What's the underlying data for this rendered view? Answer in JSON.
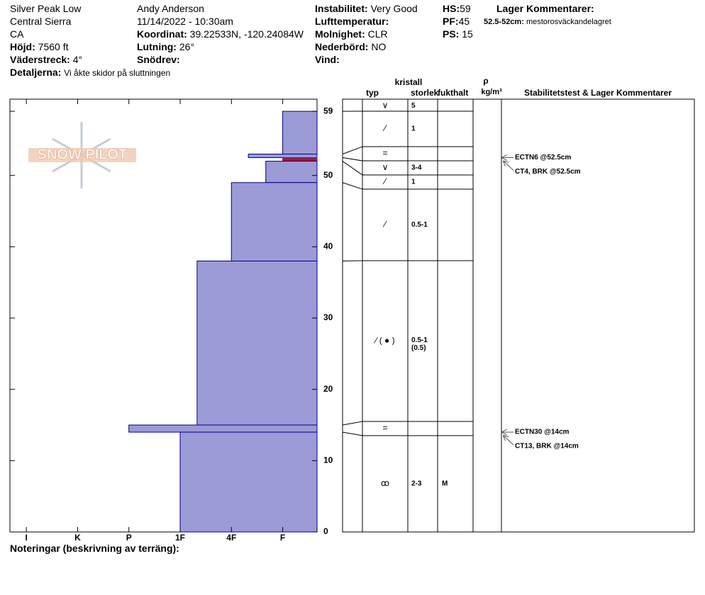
{
  "header": {
    "site": "Silver Peak Low",
    "range": "Central Sierra",
    "state": "CA",
    "elevation": {
      "label": "Höjd:",
      "value": "7560 ft"
    },
    "aspect": {
      "label": "Väderstreck:",
      "value": "4°"
    },
    "details": {
      "label": "Detaljerna:",
      "value": "Vi åkte skidor på sluttningen"
    },
    "observer": "Andy Anderson",
    "datetime": "11/14/2022 - 10:30am",
    "coordinates": {
      "label": "Koordinat:",
      "value": "39.22533N, -120.24084W"
    },
    "slope": {
      "label": "Lutning:",
      "value": "26°"
    },
    "wind_loading": {
      "label": "Snödrev:"
    },
    "stability": {
      "label": "Instabilitet:",
      "value": "Very Good"
    },
    "air_temp": {
      "label": "Lufttemperatur:"
    },
    "sky": {
      "label": "Molnighet:",
      "value": "CLR"
    },
    "precip": {
      "label": "Nederbörd:",
      "value": "NO"
    },
    "wind": {
      "label": "Vind:"
    },
    "hs": {
      "label": "HS:",
      "value": 59
    },
    "pf": {
      "label": "PF:",
      "value": 45
    },
    "ps": {
      "label": "PS:",
      "value": 15
    },
    "layer_comments": {
      "title": "Lager Kommentarer:",
      "items": [
        {
          "label": "52.5-52cm:",
          "value": "mestorosväckandelagret"
        }
      ]
    }
  },
  "chart_data": {
    "type": "snow-profile",
    "logo": "SNOW PILOT",
    "xlim": [
      6.32,
      0.33
    ],
    "xticks": [
      {
        "value": 6,
        "label": "I"
      },
      {
        "value": 5,
        "label": "K"
      },
      {
        "value": 4,
        "label": "P"
      },
      {
        "value": 3,
        "label": "1F"
      },
      {
        "value": 2,
        "label": "4F"
      },
      {
        "value": 1,
        "label": "F"
      }
    ],
    "ylim": [
      0,
      60.7
    ],
    "yticks": [
      0,
      10,
      20,
      30,
      40,
      50,
      59
    ],
    "color": "#9b9bd7",
    "edge_color": "#00008b",
    "layers": [
      {
        "top": 59,
        "bottom": 53,
        "hardness": 1
      },
      {
        "top": 53,
        "bottom": 52.5,
        "hardness": 1.67
      },
      {
        "top": 52.5,
        "bottom": 52,
        "hardness": 1,
        "color": "#9b1b3b"
      },
      {
        "top": 52,
        "bottom": 49,
        "hardness": 1.33
      },
      {
        "top": 49,
        "bottom": 38,
        "hardness": 2
      },
      {
        "top": 38,
        "bottom": 15,
        "hardness": 2.67
      },
      {
        "top": 15,
        "bottom": 14,
        "hardness": 4
      },
      {
        "top": 14,
        "bottom": 0,
        "hardness": 3
      }
    ],
    "table": {
      "headers": {
        "type": "typ",
        "size": [
          "kristall",
          "storlek"
        ],
        "moisture": "fukthalt",
        "density": [
          "ρ",
          "kg/m³"
        ],
        "comments": "Stabilitetstest & Lager Kommentarer"
      },
      "rows": [
        {
          "grain": "∨",
          "size": "5"
        },
        {
          "grain": "⁄",
          "size": "1"
        },
        {
          "grain": "="
        },
        {
          "grain": "∨",
          "size": "3-4"
        },
        {
          "grain": "⁄",
          "size": "1"
        },
        {
          "grain": "⁄",
          "size": "0.5-1"
        },
        {
          "grain": "⁄ ( ● )",
          "size": "0.5-1",
          "size_secondary": "(0.5)"
        },
        {
          "grain": "="
        },
        {
          "grain": "ꝏ",
          "size": "2-3",
          "moisture": "M"
        }
      ]
    },
    "tests": [
      {
        "label": "ECTN6 @52.5cm",
        "depth": 52.5
      },
      {
        "label": "CT4, BRK @52.5cm",
        "depth": 52.5
      },
      {
        "label": "ECTN30 @14cm",
        "depth": 14
      },
      {
        "label": "CT13, BRK @14cm",
        "depth": 14
      }
    ]
  },
  "notes": "Noteringar (beskrivning av terräng):"
}
